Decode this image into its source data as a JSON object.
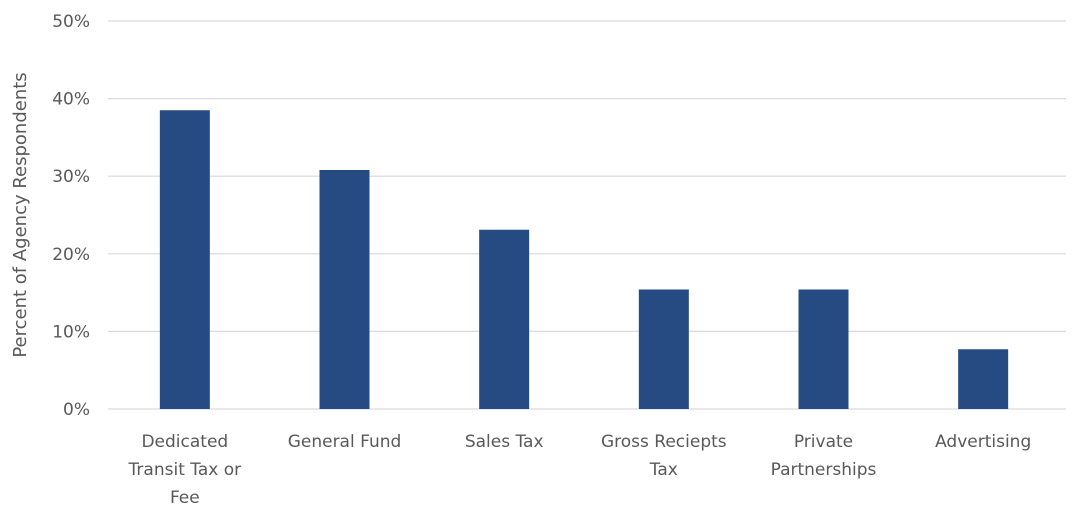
{
  "chart_data": {
    "type": "bar",
    "categories": [
      [
        "Dedicated",
        "Transit Tax or",
        "Fee"
      ],
      [
        "General Fund"
      ],
      [
        "Sales Tax"
      ],
      [
        "Gross Reciepts",
        "Tax"
      ],
      [
        "Private",
        "Partnerships"
      ],
      [
        "Advertising"
      ]
    ],
    "values": [
      38.5,
      30.8,
      23.1,
      15.4,
      15.4,
      7.7
    ],
    "ylabel": "Percent of Agency Respondents",
    "xlabel": "",
    "title": "",
    "ylim": [
      0,
      50
    ],
    "yticks": [
      0,
      10,
      20,
      30,
      40,
      50
    ],
    "ytick_labels": [
      "0%",
      "10%",
      "20%",
      "30%",
      "40%",
      "50%"
    ],
    "grid": true,
    "legend": "none",
    "colors": {
      "bar": "#264b82",
      "grid": "#d9d9d9",
      "text": "#595959"
    }
  }
}
